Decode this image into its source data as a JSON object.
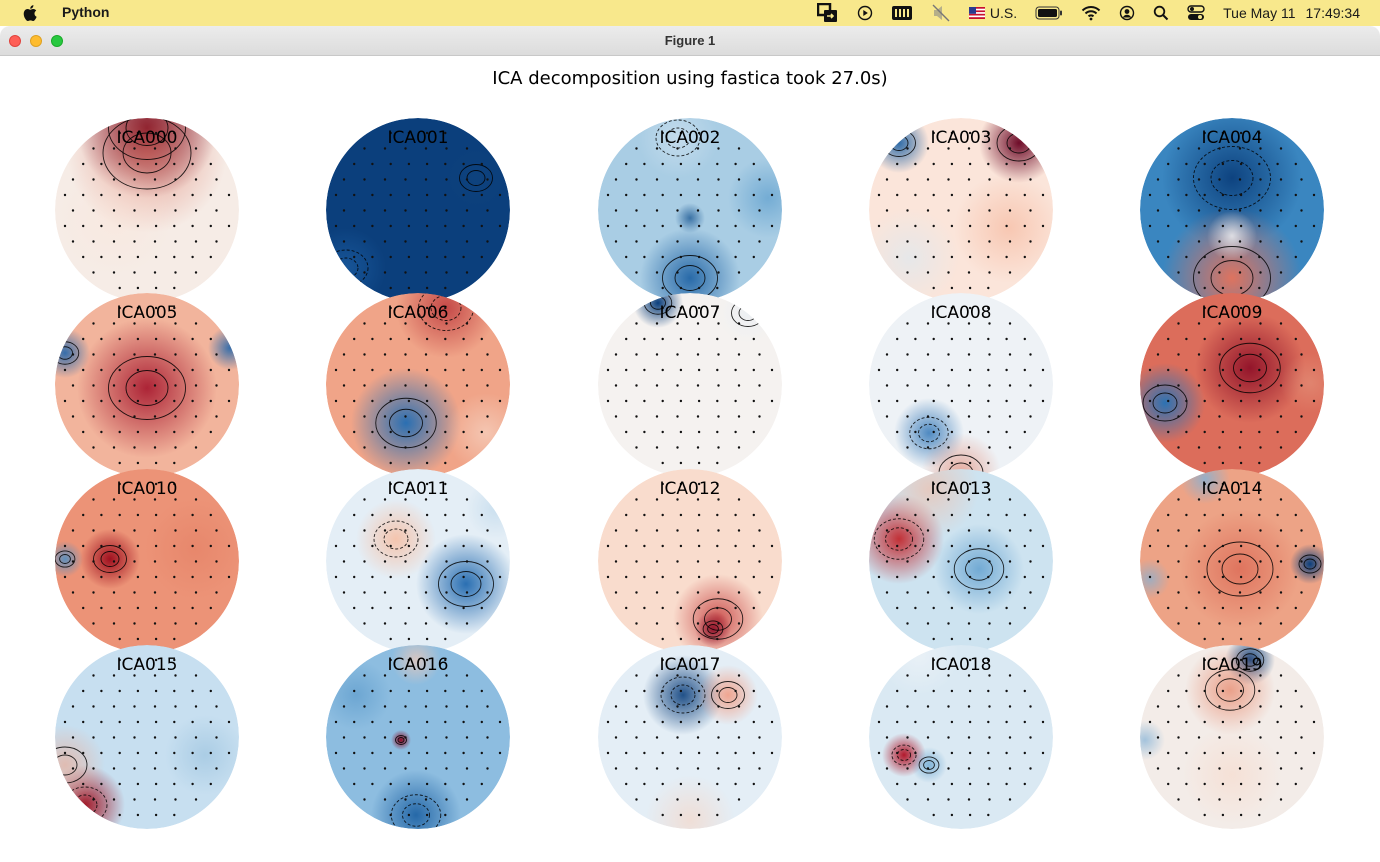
{
  "menubar": {
    "app_name": "Python",
    "status_icons": [
      "screen-share-icon",
      "play-icon",
      "battery-box-icon",
      "mute-icon",
      "us-flag-icon",
      "battery-icon",
      "wifi-icon",
      "user-icon",
      "search-icon",
      "control-center-icon"
    ],
    "input_source": "U.S.",
    "date": "Tue May 11",
    "time": "17:49:34"
  },
  "window": {
    "title": "Figure 1"
  },
  "figure": {
    "suptitle": "ICA decomposition using fastica took 27.0s)",
    "colormap": "RdBu_r",
    "colors": {
      "deep_red": "#67001f",
      "red": "#d6604d",
      "light_red": "#fddbc7",
      "white": "#f7f7f7",
      "light_blue": "#d1e5f0",
      "blue": "#4393c3",
      "deep_blue": "#053061"
    },
    "components": [
      {
        "label": "ICA000"
      },
      {
        "label": "ICA001"
      },
      {
        "label": "ICA002"
      },
      {
        "label": "ICA003"
      },
      {
        "label": "ICA004"
      },
      {
        "label": "ICA005"
      },
      {
        "label": "ICA006"
      },
      {
        "label": "ICA007"
      },
      {
        "label": "ICA008"
      },
      {
        "label": "ICA009"
      },
      {
        "label": "ICA010"
      },
      {
        "label": "ICA011"
      },
      {
        "label": "ICA012"
      },
      {
        "label": "ICA013"
      },
      {
        "label": "ICA014"
      },
      {
        "label": "ICA015"
      },
      {
        "label": "ICA016"
      },
      {
        "label": "ICA017"
      },
      {
        "label": "ICA018"
      },
      {
        "label": "ICA019"
      }
    ]
  }
}
